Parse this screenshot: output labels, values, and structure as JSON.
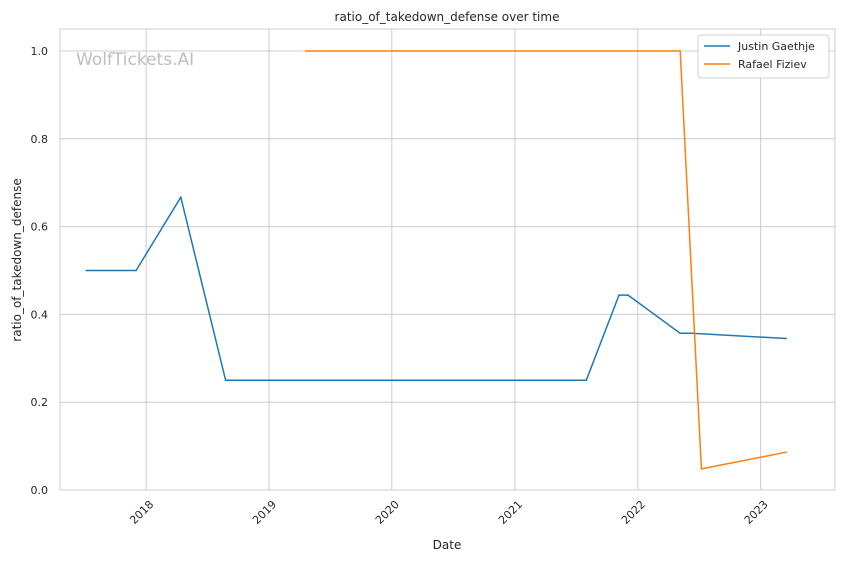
{
  "watermark": "WolfTickets.AI",
  "chart_data": {
    "type": "line",
    "title": "ratio_of_takedown_defense over time",
    "xlabel": "Date",
    "ylabel": "ratio_of_takedown_defense",
    "xlim": [
      "2017-04-20",
      "2023-08-10"
    ],
    "ylim": [
      0,
      1.05
    ],
    "x_ticks": [
      "2018-01-01",
      "2019-01-01",
      "2020-01-01",
      "2021-01-01",
      "2022-01-01",
      "2023-01-01"
    ],
    "x_tick_labels": [
      "2018",
      "2019",
      "2020",
      "2021",
      "2022",
      "2023"
    ],
    "y_ticks": [
      0.0,
      0.2,
      0.4,
      0.6,
      0.8,
      1.0
    ],
    "y_tick_labels": [
      "0.0",
      "0.2",
      "0.4",
      "0.6",
      "0.8",
      "1.0"
    ],
    "grid": true,
    "legend_position": "top-right",
    "series": [
      {
        "name": "Justin Gaethje",
        "color": "#1f77b4",
        "points": [
          {
            "x": "2017-07-07",
            "y": 0.5
          },
          {
            "x": "2017-12-02",
            "y": 0.5
          },
          {
            "x": "2018-04-14",
            "y": 0.667
          },
          {
            "x": "2018-08-25",
            "y": 0.25
          },
          {
            "x": "2021-08-01",
            "y": 0.25
          },
          {
            "x": "2021-11-06",
            "y": 0.444
          },
          {
            "x": "2021-12-03",
            "y": 0.444
          },
          {
            "x": "2022-05-07",
            "y": 0.357
          },
          {
            "x": "2022-06-10",
            "y": 0.357
          },
          {
            "x": "2023-03-18",
            "y": 0.345
          }
        ]
      },
      {
        "name": "Rafael Fiziev",
        "color": "#ff7f0e",
        "points": [
          {
            "x": "2019-04-20",
            "y": 1.0
          },
          {
            "x": "2022-05-07",
            "y": 1.0
          },
          {
            "x": "2022-07-09",
            "y": 0.048
          },
          {
            "x": "2023-03-18",
            "y": 0.086
          }
        ]
      }
    ]
  }
}
